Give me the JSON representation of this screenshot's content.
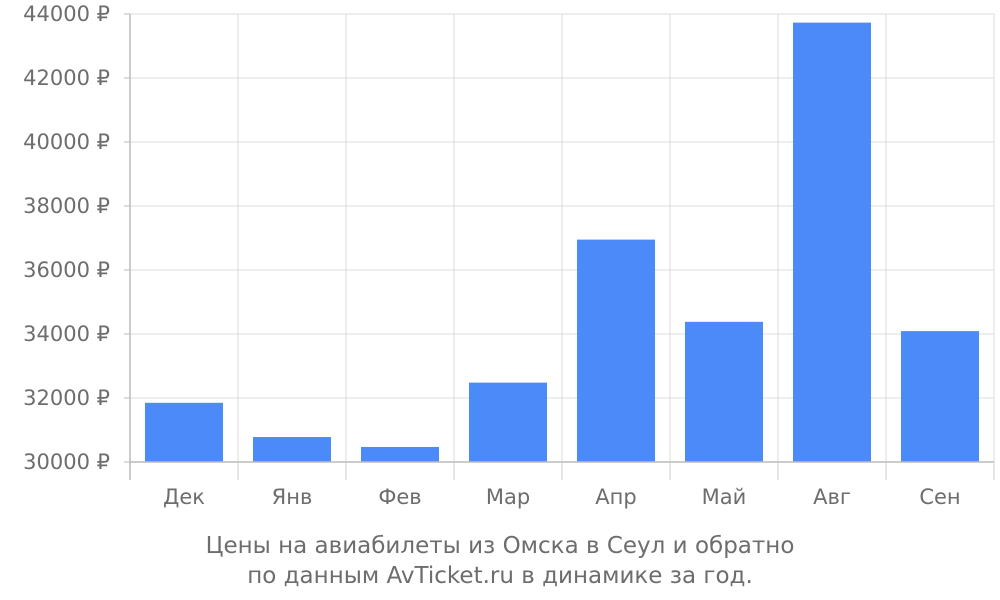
{
  "chart_data": {
    "type": "bar",
    "categories": [
      "Дек",
      "Янв",
      "Фев",
      "Мар",
      "Апр",
      "Май",
      "Авг",
      "Сен"
    ],
    "values": [
      31850,
      30780,
      30470,
      32480,
      36950,
      34380,
      43730,
      34090
    ],
    "ylim": [
      30000,
      44000
    ],
    "yticks": [
      30000,
      32000,
      34000,
      36000,
      38000,
      40000,
      42000,
      44000
    ],
    "ytick_labels": [
      "30000 ₽",
      "32000 ₽",
      "34000 ₽",
      "36000 ₽",
      "38000 ₽",
      "40000 ₽",
      "42000 ₽",
      "44000 ₽"
    ],
    "grid": true,
    "bar_color": "#4d8af9",
    "caption_line1": "Цены на авиабилеты из Омска в Сеул и обратно",
    "caption_line2": "по данным AvTicket.ru в динамике за год."
  }
}
